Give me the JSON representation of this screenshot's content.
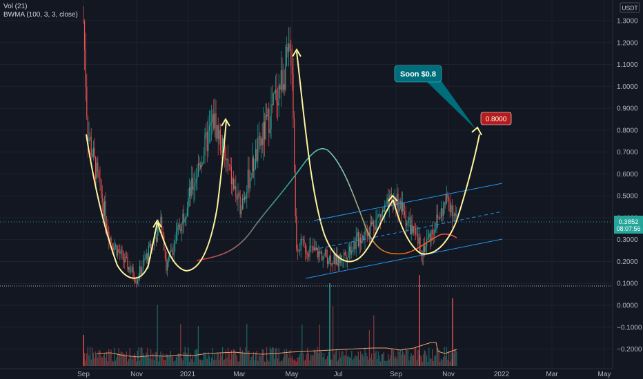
{
  "indicators": {
    "vol_label": "Vol (21)",
    "bwma_label": "BWMA (100, 3, 3, close)"
  },
  "currency_badge": "USDT",
  "annotations": {
    "callout": "Soon $0.8",
    "target_tag": "0.8000",
    "price_tag": "0.3852",
    "countdown": "08:07:56"
  },
  "colors": {
    "background": "#131722",
    "up_candle": "#26a69a",
    "down_candle": "#ef5350",
    "arc": "#fff59d",
    "channel": "#2196f3",
    "callout_bg": "#006e7a",
    "target_bg": "#b71c1c",
    "price_tag_bg": "#26a69a"
  },
  "chart_data": {
    "type": "candlestick",
    "title": "",
    "y_axis_ticks": [
      "1.3000",
      "1.2000",
      "1.1000",
      "1.0000",
      "0.9000",
      "0.8000",
      "0.7000",
      "0.6000",
      "0.5000",
      "0.4000",
      "0.3000",
      "0.2000",
      "0.1000",
      "0.0000",
      "−0.1000",
      "−0.2000"
    ],
    "x_axis_ticks": [
      "Sep",
      "Nov",
      "2021",
      "Mar",
      "May",
      "Jul",
      "Sep",
      "Nov",
      "2022",
      "Mar",
      "May"
    ],
    "ylim": [
      -0.2,
      1.3
    ],
    "current_price": 0.3852,
    "target_price": 0.8,
    "price_path": [
      {
        "month": "Sep 2020",
        "price": 1.3
      },
      {
        "month": "Sep 2020",
        "price": 0.8
      },
      {
        "month": "Oct 2020",
        "price": 0.3
      },
      {
        "month": "Nov 2020",
        "price": 0.12
      },
      {
        "month": "Dec 2020",
        "price": 0.38
      },
      {
        "month": "Dec 2020",
        "price": 0.17
      },
      {
        "month": "Feb 2021",
        "price": 0.85
      },
      {
        "month": "Mar 2021",
        "price": 0.45
      },
      {
        "month": "May 2021",
        "price": 1.17
      },
      {
        "month": "May 2021",
        "price": 0.28
      },
      {
        "month": "Jul 2021",
        "price": 0.2
      },
      {
        "month": "Sep 2021",
        "price": 0.49
      },
      {
        "month": "Oct 2021",
        "price": 0.25
      },
      {
        "month": "Nov 2021",
        "price": 0.49
      },
      {
        "month": "Nov 2021",
        "price": 0.3852
      }
    ]
  }
}
